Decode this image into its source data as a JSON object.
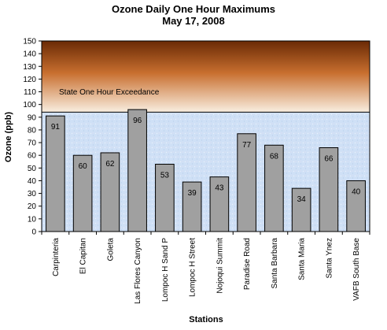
{
  "chart_data": {
    "type": "bar",
    "title": "Ozone Daily One Hour Maximums",
    "subtitle": "May 17, 2008",
    "xlabel": "Stations",
    "ylabel": "Ozone (ppb)",
    "ylim": [
      0,
      150
    ],
    "yticks": [
      0,
      10,
      20,
      30,
      40,
      50,
      60,
      70,
      80,
      90,
      100,
      110,
      120,
      130,
      140,
      150
    ],
    "categories": [
      "Carpinteria",
      "El Capitan",
      "Goleta",
      "Las Flores Canyon",
      "Lompoc H Sand P",
      "Lompoc H Street",
      "Nojoqui Summit",
      "Paradise Road",
      "Santa Barbara",
      "Santa Maria",
      "Santa Ynez",
      "VAFB South Base"
    ],
    "values": [
      91,
      60,
      62,
      96,
      53,
      39,
      43,
      77,
      68,
      34,
      66,
      40
    ],
    "threshold": {
      "label": "State One Hour Exceedance",
      "value": 94
    },
    "grid": false,
    "legend": "none"
  },
  "colors": {
    "bar_fill": "#a0a0a0",
    "bar_stroke": "#000000",
    "exceed_top": "#6a2a05",
    "exceed_bottom": "#f9eee0",
    "plot_bg": "#cfe0f6"
  }
}
